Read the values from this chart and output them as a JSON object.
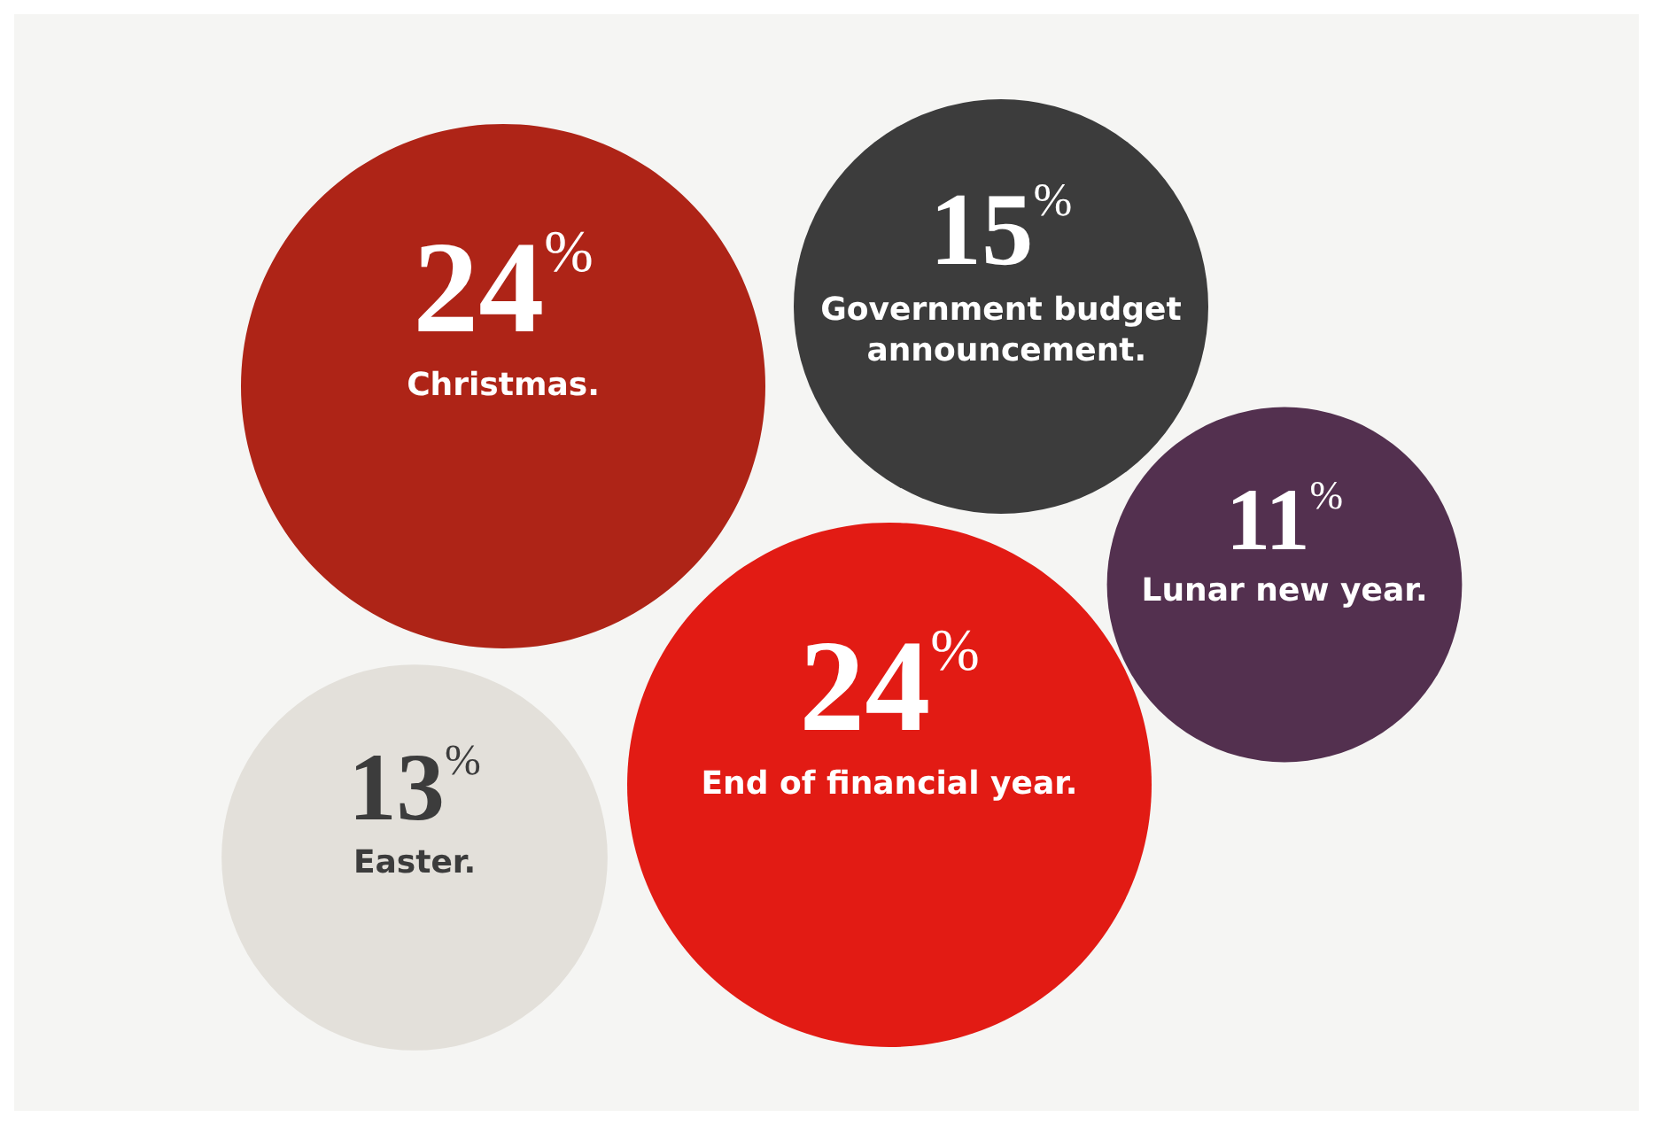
{
  "chart_data": {
    "type": "other",
    "categories": [
      "Christmas.",
      "Government budget announcement.",
      "Lunar new year.",
      "End of financial year.",
      "Easter."
    ],
    "values": [
      24,
      15,
      11,
      24,
      13
    ],
    "value_labels": [
      "24%",
      "15%",
      "11%",
      "24%",
      "13%"
    ],
    "colors": [
      "#ae2417",
      "#3c3c3c",
      "#53304f",
      "#e21b14",
      "#e3e0da"
    ]
  }
}
